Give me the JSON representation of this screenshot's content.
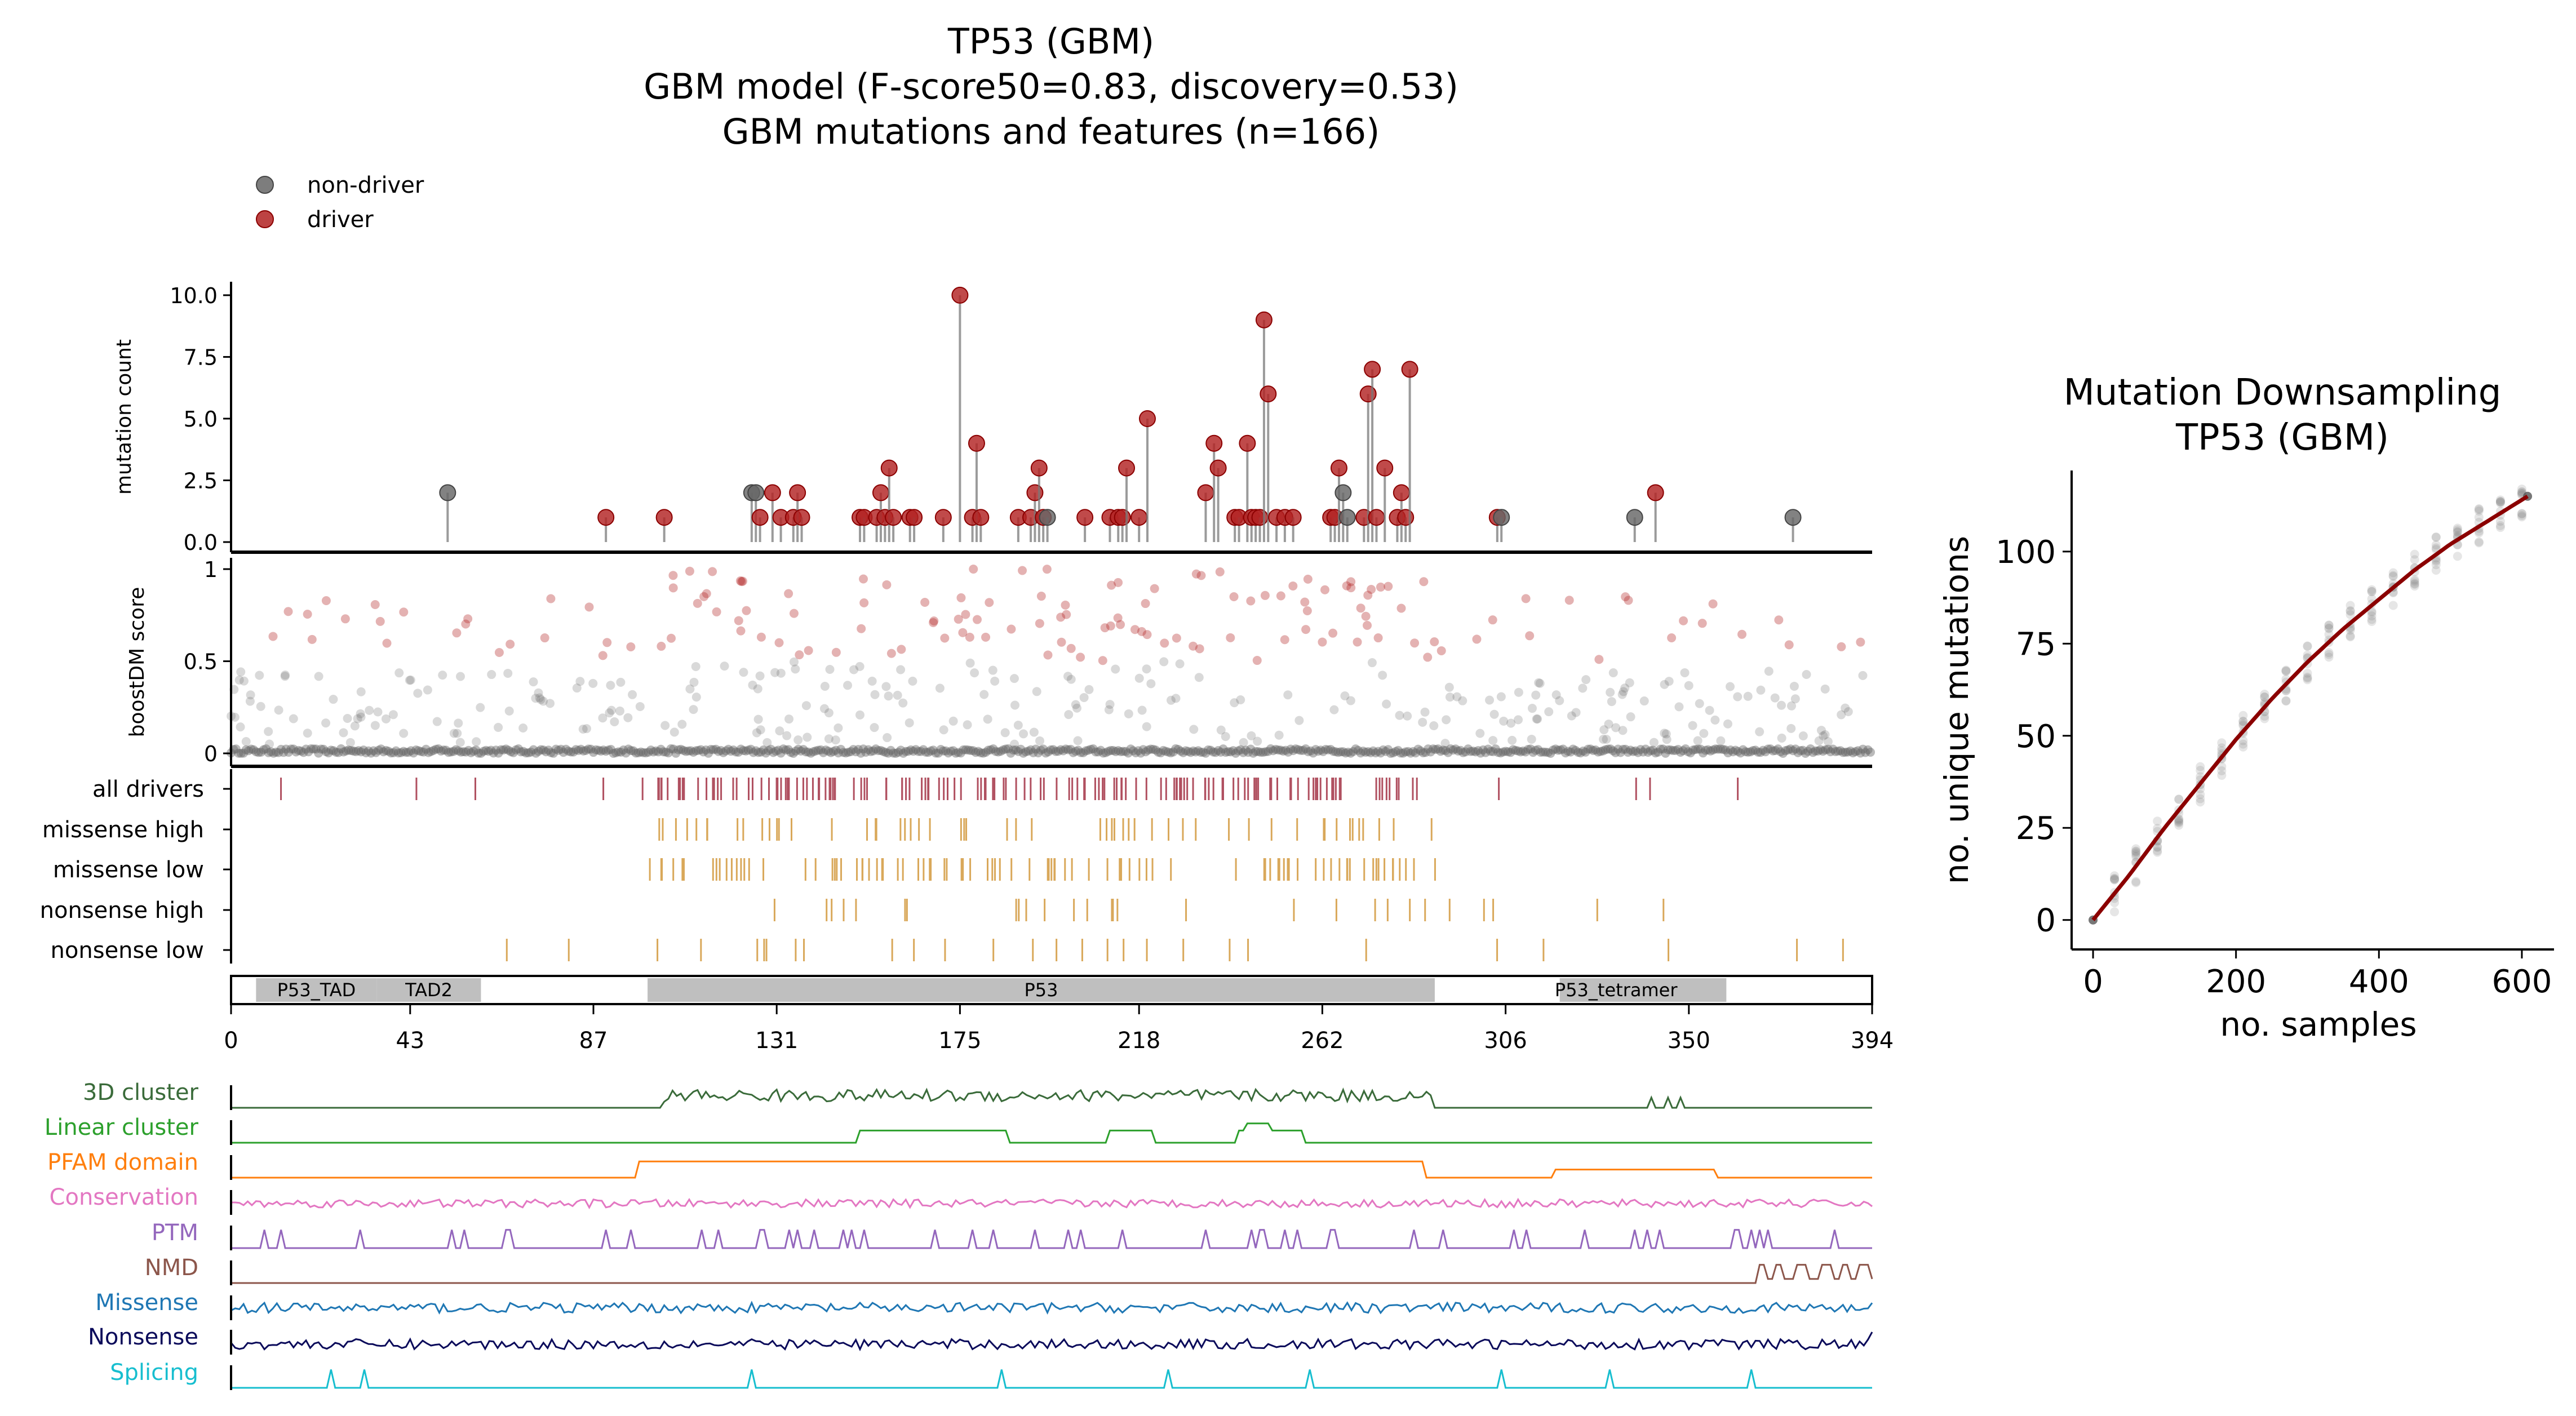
{
  "title": {
    "line1": "TP53 (GBM)",
    "line2": "GBM model (F-score50=0.83, discovery=0.53)",
    "line3": "GBM mutations and features (n=166)"
  },
  "legend": {
    "non_driver_label": "non-driver",
    "driver_label": "driver",
    "placement": "top-left",
    "colors": {
      "non_driver": "#666666",
      "driver": "#b22222"
    }
  },
  "colors": {
    "driver": "#b22222",
    "non_driver": "#666666",
    "track_driver": "#b05060",
    "track_class": "#d9a85a",
    "domain": "#bfbfbf",
    "downsampling_line": "#8b0000"
  },
  "chart_data": [
    {
      "type": "lollipop",
      "id": "mutation-count",
      "ylabel": "mutation count",
      "ylim": [
        0,
        10.5
      ],
      "yticks": [
        "0.0",
        "2.5",
        "5.0",
        "7.5",
        "10.0"
      ],
      "xlim": [
        0,
        394
      ],
      "points": [
        {
          "x": 52,
          "y": 2,
          "driver": false
        },
        {
          "x": 90,
          "y": 1,
          "driver": true
        },
        {
          "x": 104,
          "y": 1,
          "driver": true
        },
        {
          "x": 125,
          "y": 2,
          "driver": false
        },
        {
          "x": 126,
          "y": 2,
          "driver": false
        },
        {
          "x": 127,
          "y": 1,
          "driver": true
        },
        {
          "x": 130,
          "y": 2,
          "driver": true
        },
        {
          "x": 132,
          "y": 1,
          "driver": true
        },
        {
          "x": 135,
          "y": 1,
          "driver": true
        },
        {
          "x": 136,
          "y": 2,
          "driver": true
        },
        {
          "x": 137,
          "y": 1,
          "driver": true
        },
        {
          "x": 151,
          "y": 1,
          "driver": true
        },
        {
          "x": 152,
          "y": 1,
          "driver": true
        },
        {
          "x": 155,
          "y": 1,
          "driver": true
        },
        {
          "x": 156,
          "y": 2,
          "driver": true
        },
        {
          "x": 157,
          "y": 1,
          "driver": true
        },
        {
          "x": 158,
          "y": 3,
          "driver": true
        },
        {
          "x": 159,
          "y": 1,
          "driver": true
        },
        {
          "x": 163,
          "y": 1,
          "driver": true
        },
        {
          "x": 164,
          "y": 1,
          "driver": true
        },
        {
          "x": 171,
          "y": 1,
          "driver": true
        },
        {
          "x": 175,
          "y": 10,
          "driver": true
        },
        {
          "x": 178,
          "y": 1,
          "driver": true
        },
        {
          "x": 179,
          "y": 4,
          "driver": true
        },
        {
          "x": 180,
          "y": 1,
          "driver": true
        },
        {
          "x": 189,
          "y": 1,
          "driver": true
        },
        {
          "x": 192,
          "y": 1,
          "driver": true
        },
        {
          "x": 193,
          "y": 2,
          "driver": true
        },
        {
          "x": 194,
          "y": 3,
          "driver": true
        },
        {
          "x": 195,
          "y": 1,
          "driver": true
        },
        {
          "x": 196,
          "y": 1,
          "driver": false
        },
        {
          "x": 205,
          "y": 1,
          "driver": true
        },
        {
          "x": 211,
          "y": 1,
          "driver": true
        },
        {
          "x": 213,
          "y": 1,
          "driver": true
        },
        {
          "x": 214,
          "y": 1,
          "driver": true
        },
        {
          "x": 215,
          "y": 3,
          "driver": true
        },
        {
          "x": 218,
          "y": 1,
          "driver": true
        },
        {
          "x": 220,
          "y": 5,
          "driver": true
        },
        {
          "x": 234,
          "y": 2,
          "driver": true
        },
        {
          "x": 236,
          "y": 4,
          "driver": true
        },
        {
          "x": 237,
          "y": 3,
          "driver": true
        },
        {
          "x": 241,
          "y": 1,
          "driver": true
        },
        {
          "x": 242,
          "y": 1,
          "driver": true
        },
        {
          "x": 244,
          "y": 4,
          "driver": true
        },
        {
          "x": 245,
          "y": 1,
          "driver": true
        },
        {
          "x": 246,
          "y": 1,
          "driver": true
        },
        {
          "x": 247,
          "y": 1,
          "driver": true
        },
        {
          "x": 248,
          "y": 9,
          "driver": true
        },
        {
          "x": 249,
          "y": 6,
          "driver": true
        },
        {
          "x": 251,
          "y": 1,
          "driver": true
        },
        {
          "x": 253,
          "y": 1,
          "driver": true
        },
        {
          "x": 255,
          "y": 1,
          "driver": true
        },
        {
          "x": 264,
          "y": 1,
          "driver": true
        },
        {
          "x": 265,
          "y": 1,
          "driver": true
        },
        {
          "x": 266,
          "y": 3,
          "driver": true
        },
        {
          "x": 267,
          "y": 2,
          "driver": false
        },
        {
          "x": 268,
          "y": 1,
          "driver": false
        },
        {
          "x": 272,
          "y": 1,
          "driver": true
        },
        {
          "x": 273,
          "y": 6,
          "driver": true
        },
        {
          "x": 274,
          "y": 7,
          "driver": true
        },
        {
          "x": 275,
          "y": 1,
          "driver": true
        },
        {
          "x": 277,
          "y": 3,
          "driver": true
        },
        {
          "x": 280,
          "y": 1,
          "driver": true
        },
        {
          "x": 281,
          "y": 2,
          "driver": true
        },
        {
          "x": 282,
          "y": 1,
          "driver": true
        },
        {
          "x": 283,
          "y": 7,
          "driver": true
        },
        {
          "x": 304,
          "y": 1,
          "driver": true
        },
        {
          "x": 305,
          "y": 1,
          "driver": false
        },
        {
          "x": 337,
          "y": 1,
          "driver": false
        },
        {
          "x": 342,
          "y": 2,
          "driver": true
        },
        {
          "x": 375,
          "y": 1,
          "driver": false
        }
      ]
    },
    {
      "type": "scatter",
      "id": "boostdm-score",
      "ylabel": "boostDM score",
      "ylim": [
        0,
        1
      ],
      "yticks": [
        "0",
        "0.5",
        "1"
      ],
      "xlim": [
        0,
        394
      ],
      "note": "one dot per possible mutation; red = predicted driver (score > 0.5), grey = non-driver"
    },
    {
      "type": "track",
      "id": "mutation-tracks",
      "rows": [
        {
          "label": "all drivers",
          "color": "track_driver"
        },
        {
          "label": "missense high",
          "color": "track_class"
        },
        {
          "label": "missense low",
          "color": "track_class"
        },
        {
          "label": "nonsense high",
          "color": "track_class"
        },
        {
          "label": "nonsense low",
          "color": "track_class"
        }
      ]
    },
    {
      "type": "domains",
      "id": "protein-domains",
      "domains": [
        {
          "name": "P53_TAD",
          "start": 6,
          "end": 35
        },
        {
          "name": "TAD2",
          "start": 35,
          "end": 60
        },
        {
          "name": "P53",
          "start": 100,
          "end": 289
        },
        {
          "name": "P53_tetramer",
          "start": 319,
          "end": 359
        }
      ],
      "xticks": [
        0,
        43,
        87,
        131,
        175,
        218,
        262,
        306,
        350,
        394
      ]
    },
    {
      "type": "line",
      "id": "features",
      "rows": [
        {
          "label": "3D cluster",
          "color": "#3a6b3a"
        },
        {
          "label": "Linear cluster",
          "color": "#2ca02c"
        },
        {
          "label": "PFAM domain",
          "color": "#ff7f0e"
        },
        {
          "label": "Conservation",
          "color": "#e377c2"
        },
        {
          "label": "PTM",
          "color": "#9467bd"
        },
        {
          "label": "NMD",
          "color": "#8c564b"
        },
        {
          "label": "Missense",
          "color": "#1f77b4"
        },
        {
          "label": "Nonsense",
          "color": "#0a0a5a"
        },
        {
          "label": "Splicing",
          "color": "#17becf"
        }
      ]
    },
    {
      "type": "line",
      "id": "downsampling",
      "title_line1": "Mutation Downsampling",
      "title_line2": "TP53 (GBM)",
      "xlabel": "no. samples",
      "ylabel": "no. unique mutations",
      "xlim": [
        -30,
        645
      ],
      "ylim": [
        -8,
        122
      ],
      "xticks": [
        0,
        200,
        400,
        600
      ],
      "yticks": [
        0,
        25,
        50,
        75,
        100
      ],
      "series": [
        {
          "x": [
            0,
            50,
            100,
            150,
            200,
            250,
            300,
            350,
            400,
            450,
            500,
            550,
            608
          ],
          "y": [
            0,
            12,
            25,
            37,
            49,
            60,
            70,
            79,
            87,
            95,
            102,
            108,
            115
          ]
        }
      ]
    }
  ]
}
